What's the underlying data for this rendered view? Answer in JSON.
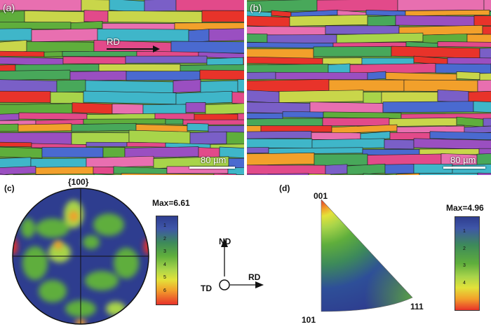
{
  "panels": {
    "a": {
      "label": "(a)",
      "direction_label": "RD",
      "scale_label": "80 µm"
    },
    "b": {
      "label": "(b)",
      "scale_label": "80 µm"
    },
    "c": {
      "label": "(c)",
      "title": "{100}",
      "max_label": "Max=6.61",
      "colorbar_ticks": [
        "1",
        "2",
        "3",
        "4",
        "5",
        "6"
      ]
    },
    "d": {
      "label": "(d)",
      "max_label": "Max=4.96",
      "colorbar_ticks": [
        "1",
        "2",
        "3",
        "4"
      ],
      "corners": {
        "top": "001",
        "bottom_left": "101",
        "right": "111"
      }
    }
  },
  "axes": {
    "nd": "ND",
    "rd": "RD",
    "td": "TD"
  },
  "colors": {
    "low": "#2e3d8f",
    "mid": "#5fae3c",
    "high": "#e8332a",
    "grain_palette": [
      "#e24a8a",
      "#7a5fc7",
      "#5fae3c",
      "#a8d44a",
      "#3fb6c9",
      "#e8332a",
      "#f2a02b",
      "#c9d64a",
      "#9a4fc1",
      "#4a6ad0",
      "#e86fb0",
      "#48a85a"
    ]
  }
}
